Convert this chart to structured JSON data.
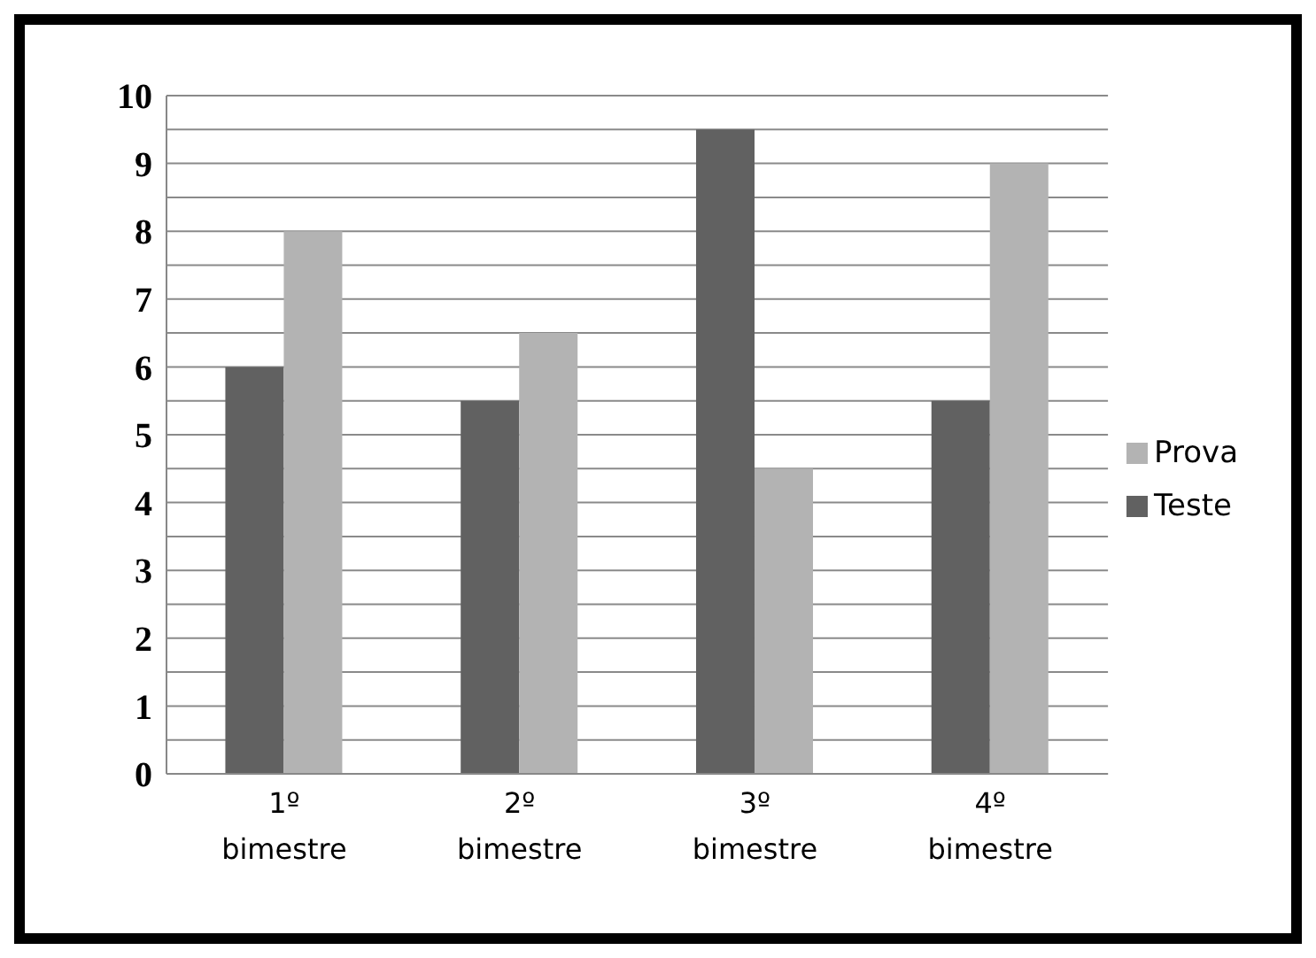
{
  "chart_data": {
    "type": "bar",
    "categories": [
      "1º bimestre",
      "2º bimestre",
      "3º bimestre",
      "4º bimestre"
    ],
    "series": [
      {
        "name": "Teste",
        "color": "#616161",
        "values": [
          6,
          5.5,
          9.5,
          5.5
        ]
      },
      {
        "name": "Prova",
        "color": "#b3b3b3",
        "values": [
          8,
          6.5,
          4.5,
          9
        ]
      }
    ],
    "ylim": [
      0,
      10
    ],
    "yticks": [
      0,
      {
        "value": 0.5,
        "label": null
      },
      1,
      {
        "value": 1.5,
        "label": null
      },
      2,
      {
        "value": 2.5,
        "label": null
      },
      3,
      {
        "value": 3.5,
        "label": null
      },
      4,
      {
        "value": 4.5,
        "label": null
      },
      5,
      {
        "value": 5.5,
        "label": null
      },
      6,
      {
        "value": 6.5,
        "label": null
      },
      7,
      {
        "value": 7.5,
        "label": null
      },
      8,
      {
        "value": 8.5,
        "label": null
      },
      9,
      {
        "value": 9.5,
        "label": null
      },
      10
    ],
    "grid": "y",
    "legend": "right"
  }
}
